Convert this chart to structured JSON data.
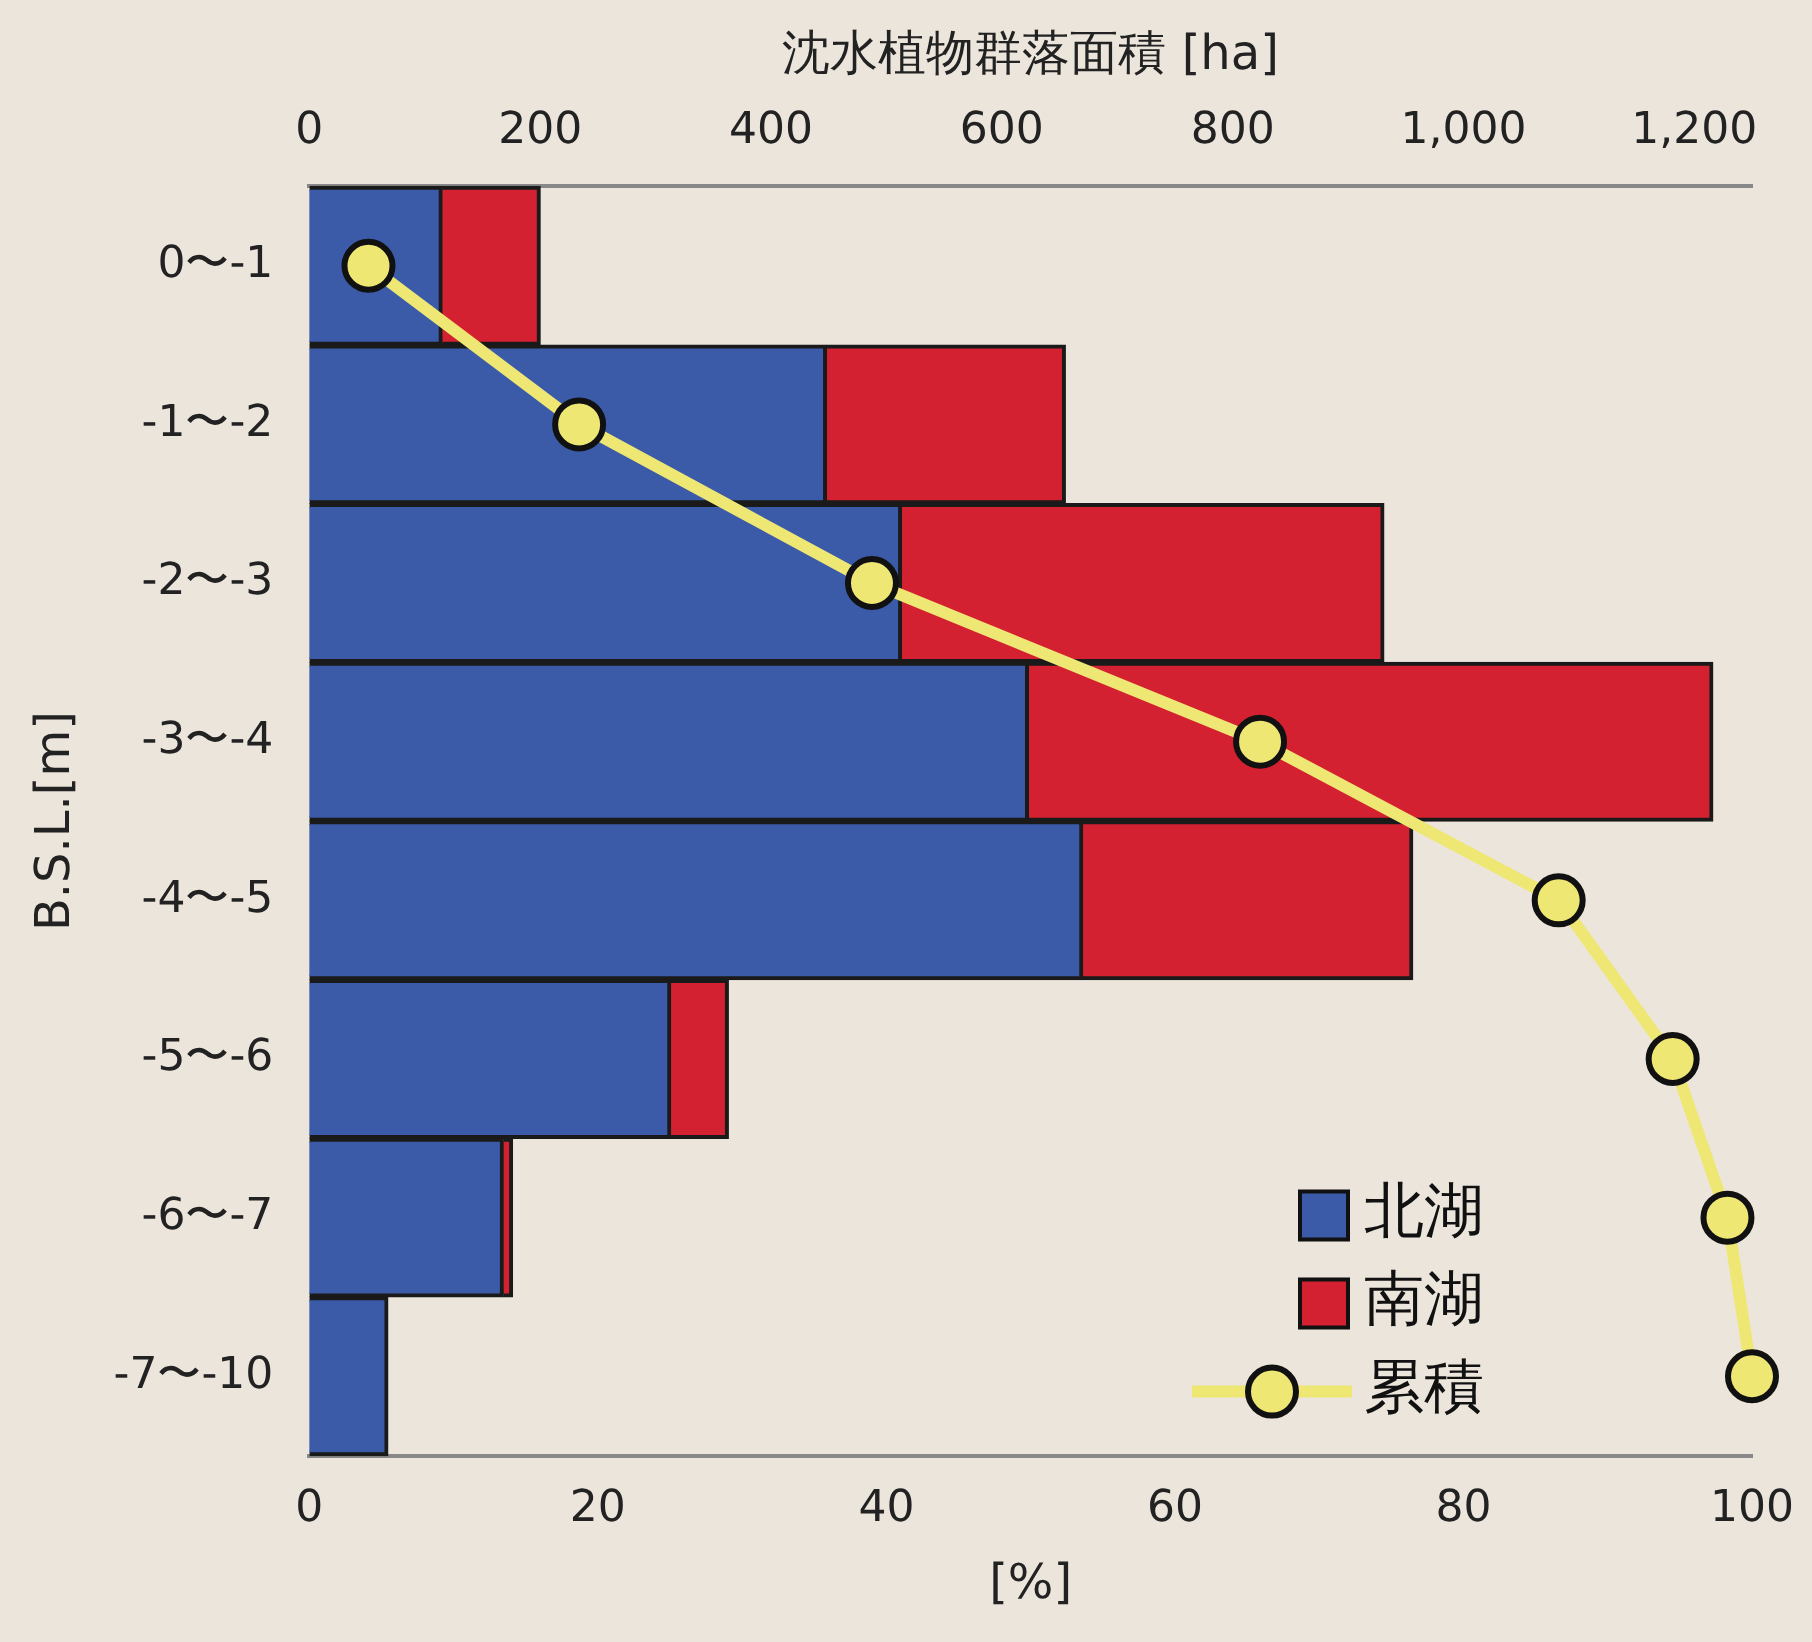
{
  "chart_data": {
    "type": "bar",
    "orientation": "horizontal",
    "stacked": true,
    "categories": [
      "0〜-1",
      "-1〜-2",
      "-2〜-3",
      "-3〜-4",
      "-4〜-5",
      "-5〜-6",
      "-6〜-7",
      "-7〜-10"
    ],
    "series": [
      {
        "name": "北湖",
        "color": "#3b5ba8",
        "values": [
          115,
          448,
          513,
          623,
          670,
          313,
          168,
          68
        ]
      },
      {
        "name": "南湖",
        "color": "#d42131",
        "values": [
          85,
          207,
          418,
          593,
          286,
          50,
          8,
          null
        ]
      },
      {
        "name": "累積",
        "type": "line",
        "color": "#efe773",
        "axis": "x2",
        "marker": "circle",
        "line_style": "solid",
        "values": [
          4.1,
          18.7,
          39.0,
          65.9,
          86.6,
          94.5,
          98.3,
          100
        ]
      }
    ],
    "xlabel": "沈水植物群落面積 [ha]",
    "xlim": [
      0,
      1250
    ],
    "xticks": [
      0,
      200,
      400,
      600,
      800,
      {
        "value": 1000,
        "label": "1,000"
      },
      {
        "value": 1200,
        "label": "1,200"
      }
    ],
    "x2label": "[%]",
    "x2lim": [
      0,
      100
    ],
    "x2ticks": [
      0,
      20,
      40,
      60,
      80,
      100
    ],
    "ylabel": "B.S.L.[m]",
    "grid": false,
    "legend": "bottom right"
  }
}
